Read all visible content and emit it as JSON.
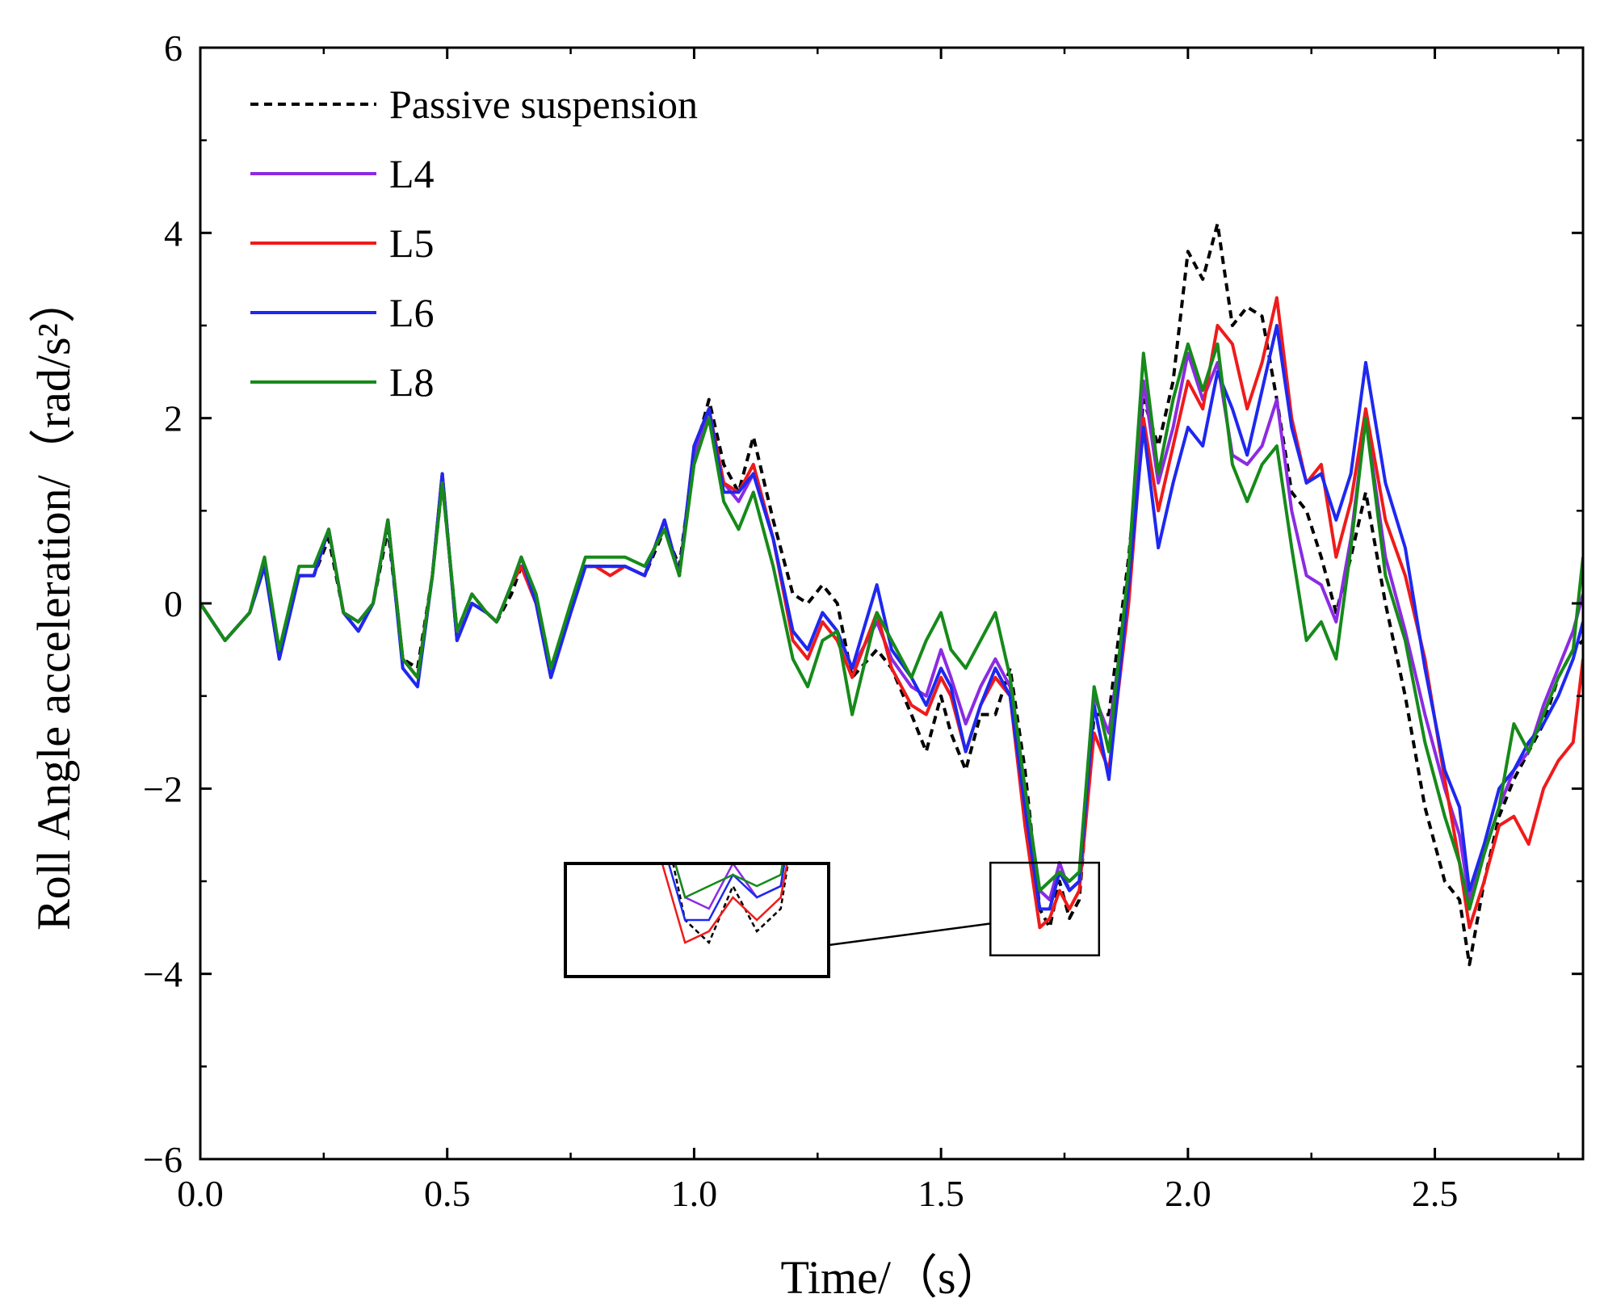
{
  "chart_data": {
    "type": "line",
    "title": "",
    "xlabel": "Time/（s）",
    "ylabel": "Roll Angle acceleration/（rad/s²）",
    "xlim": [
      0,
      2.8
    ],
    "ylim": [
      -6,
      6
    ],
    "x_ticks": [
      0.0,
      0.5,
      1.0,
      1.5,
      2.0,
      2.5
    ],
    "x_tick_labels": [
      "0.0",
      "0.5",
      "1.0",
      "1.5",
      "2.0",
      "2.5"
    ],
    "y_ticks": [
      -6,
      -4,
      -2,
      0,
      2,
      4,
      6
    ],
    "y_tick_labels": [
      "−6",
      "−4",
      "−2",
      "0",
      "2",
      "4",
      "6"
    ],
    "grid": false,
    "legend_position": "top-left",
    "inset": {
      "x_range": [
        1.6,
        1.82
      ],
      "y_range": [
        -3.8,
        -2.8
      ],
      "magnified": true
    },
    "x": [
      0.0,
      0.05,
      0.1,
      0.13,
      0.16,
      0.2,
      0.23,
      0.26,
      0.29,
      0.32,
      0.35,
      0.38,
      0.41,
      0.44,
      0.47,
      0.49,
      0.52,
      0.55,
      0.58,
      0.6,
      0.63,
      0.65,
      0.68,
      0.71,
      0.75,
      0.78,
      0.8,
      0.83,
      0.86,
      0.9,
      0.94,
      0.97,
      1.0,
      1.03,
      1.06,
      1.09,
      1.12,
      1.16,
      1.2,
      1.23,
      1.26,
      1.29,
      1.32,
      1.37,
      1.4,
      1.44,
      1.47,
      1.5,
      1.52,
      1.55,
      1.58,
      1.61,
      1.64,
      1.67,
      1.7,
      1.72,
      1.74,
      1.76,
      1.78,
      1.81,
      1.84,
      1.88,
      1.91,
      1.94,
      1.97,
      2.0,
      2.03,
      2.06,
      2.09,
      2.12,
      2.15,
      2.18,
      2.21,
      2.24,
      2.27,
      2.3,
      2.33,
      2.36,
      2.4,
      2.44,
      2.48,
      2.52,
      2.55,
      2.57,
      2.6,
      2.63,
      2.66,
      2.69,
      2.72,
      2.75,
      2.78,
      2.8
    ],
    "series": [
      {
        "name": "Passive suspension",
        "color": "#000000",
        "dash": true,
        "values": [
          0.0,
          -0.4,
          -0.1,
          0.4,
          -0.5,
          0.3,
          0.3,
          0.7,
          -0.1,
          -0.2,
          0.0,
          0.8,
          -0.6,
          -0.7,
          0.3,
          1.3,
          -0.3,
          0.1,
          -0.1,
          -0.2,
          0.1,
          0.4,
          0.0,
          -0.7,
          -0.1,
          0.4,
          0.4,
          0.4,
          0.4,
          0.3,
          0.8,
          0.4,
          1.6,
          2.2,
          1.5,
          1.2,
          1.8,
          0.9,
          0.1,
          0.0,
          0.2,
          0.0,
          -0.8,
          -0.5,
          -0.7,
          -1.2,
          -1.6,
          -1.0,
          -1.4,
          -1.8,
          -1.2,
          -1.2,
          -0.7,
          -1.8,
          -3.3,
          -3.5,
          -3.0,
          -3.4,
          -3.2,
          -1.2,
          -1.2,
          0.5,
          2.2,
          1.7,
          2.4,
          3.8,
          3.5,
          4.1,
          3.0,
          3.2,
          3.1,
          2.2,
          1.2,
          1.0,
          0.5,
          -0.1,
          0.5,
          1.2,
          0.0,
          -1.0,
          -2.2,
          -3.0,
          -3.2,
          -3.9,
          -3.0,
          -2.3,
          -1.9,
          -1.6,
          -1.3,
          -0.8,
          -0.5,
          -0.4
        ]
      },
      {
        "name": "L4",
        "color": "#8b2be2",
        "dash": false,
        "values": [
          0.0,
          -0.4,
          -0.1,
          0.4,
          -0.5,
          0.3,
          0.3,
          0.8,
          -0.1,
          -0.2,
          0.0,
          0.9,
          -0.6,
          -0.8,
          0.3,
          1.4,
          -0.4,
          0.0,
          -0.1,
          -0.2,
          0.2,
          0.4,
          0.0,
          -0.8,
          -0.1,
          0.4,
          0.4,
          0.4,
          0.4,
          0.3,
          0.9,
          0.3,
          1.6,
          2.1,
          1.3,
          1.1,
          1.4,
          0.7,
          -0.3,
          -0.5,
          -0.1,
          -0.3,
          -0.7,
          -0.2,
          -0.6,
          -0.9,
          -1.0,
          -0.5,
          -0.8,
          -1.3,
          -0.9,
          -0.6,
          -0.9,
          -2.0,
          -3.1,
          -3.2,
          -2.8,
          -3.1,
          -3.0,
          -1.0,
          -1.4,
          0.2,
          2.4,
          1.3,
          1.9,
          2.7,
          2.2,
          2.6,
          1.6,
          1.5,
          1.7,
          2.2,
          1.0,
          0.3,
          0.2,
          -0.2,
          0.7,
          2.0,
          0.5,
          -0.3,
          -1.2,
          -2.0,
          -2.5,
          -3.2,
          -2.7,
          -2.2,
          -1.8,
          -1.6,
          -1.1,
          -0.7,
          -0.3,
          0.1
        ]
      },
      {
        "name": "L5",
        "color": "#ef1b1b",
        "dash": false,
        "values": [
          0.0,
          -0.4,
          -0.1,
          0.4,
          -0.6,
          0.3,
          0.3,
          0.8,
          -0.1,
          -0.3,
          0.0,
          0.9,
          -0.6,
          -0.8,
          0.3,
          1.4,
          -0.4,
          0.0,
          -0.1,
          -0.2,
          0.2,
          0.4,
          0.0,
          -0.8,
          -0.1,
          0.4,
          0.4,
          0.3,
          0.4,
          0.3,
          0.9,
          0.3,
          1.7,
          2.1,
          1.3,
          1.2,
          1.5,
          0.7,
          -0.4,
          -0.6,
          -0.2,
          -0.4,
          -0.8,
          -0.1,
          -0.7,
          -1.1,
          -1.2,
          -0.8,
          -1.0,
          -1.6,
          -1.1,
          -0.8,
          -1.0,
          -2.4,
          -3.5,
          -3.4,
          -3.1,
          -3.3,
          -3.1,
          -1.4,
          -1.8,
          0.0,
          2.0,
          1.0,
          1.7,
          2.4,
          2.1,
          3.0,
          2.8,
          2.1,
          2.6,
          3.3,
          2.0,
          1.3,
          1.5,
          0.5,
          1.1,
          2.1,
          0.9,
          0.3,
          -0.6,
          -1.9,
          -2.8,
          -3.5,
          -3.0,
          -2.4,
          -2.3,
          -2.6,
          -2.0,
          -1.7,
          -1.5,
          -0.6
        ]
      },
      {
        "name": "L6",
        "color": "#1e28f0",
        "dash": false,
        "values": [
          0.0,
          -0.4,
          -0.1,
          0.4,
          -0.6,
          0.3,
          0.3,
          0.8,
          -0.1,
          -0.3,
          0.0,
          0.9,
          -0.7,
          -0.9,
          0.3,
          1.4,
          -0.4,
          0.0,
          -0.1,
          -0.2,
          0.2,
          0.5,
          0.0,
          -0.8,
          -0.1,
          0.4,
          0.4,
          0.4,
          0.4,
          0.3,
          0.9,
          0.3,
          1.7,
          2.1,
          1.2,
          1.2,
          1.4,
          0.7,
          -0.3,
          -0.5,
          -0.1,
          -0.3,
          -0.7,
          0.2,
          -0.5,
          -0.8,
          -1.1,
          -0.7,
          -0.9,
          -1.6,
          -1.1,
          -0.7,
          -1.0,
          -2.2,
          -3.3,
          -3.3,
          -2.9,
          -3.1,
          -3.0,
          -1.1,
          -1.9,
          0.2,
          1.9,
          0.6,
          1.3,
          1.9,
          1.7,
          2.5,
          2.1,
          1.6,
          2.3,
          3.0,
          1.9,
          1.3,
          1.4,
          0.9,
          1.4,
          2.6,
          1.3,
          0.6,
          -0.7,
          -1.8,
          -2.2,
          -3.1,
          -2.6,
          -2.0,
          -1.8,
          -1.5,
          -1.3,
          -1.0,
          -0.6,
          -0.2
        ]
      },
      {
        "name": "L8",
        "color": "#168a1a",
        "dash": false,
        "values": [
          0.0,
          -0.4,
          -0.1,
          0.5,
          -0.5,
          0.4,
          0.4,
          0.8,
          -0.1,
          -0.2,
          0.0,
          0.9,
          -0.6,
          -0.8,
          0.3,
          1.3,
          -0.3,
          0.1,
          -0.1,
          -0.2,
          0.2,
          0.5,
          0.1,
          -0.7,
          0.0,
          0.5,
          0.5,
          0.5,
          0.5,
          0.4,
          0.8,
          0.3,
          1.5,
          2.0,
          1.1,
          0.8,
          1.2,
          0.4,
          -0.6,
          -0.9,
          -0.4,
          -0.3,
          -1.2,
          -0.1,
          -0.4,
          -0.8,
          -0.4,
          -0.1,
          -0.5,
          -0.7,
          -0.4,
          -0.1,
          -0.8,
          -2.0,
          -3.1,
          -3.0,
          -2.9,
          -3.0,
          -2.9,
          -0.9,
          -1.6,
          0.4,
          2.7,
          1.4,
          2.2,
          2.8,
          2.3,
          2.8,
          1.5,
          1.1,
          1.5,
          1.7,
          0.6,
          -0.4,
          -0.2,
          -0.6,
          0.6,
          2.0,
          0.3,
          -0.4,
          -1.5,
          -2.3,
          -2.8,
          -3.3,
          -2.7,
          -2.2,
          -1.3,
          -1.6,
          -1.2,
          -0.8,
          -0.5,
          0.5
        ]
      }
    ]
  }
}
